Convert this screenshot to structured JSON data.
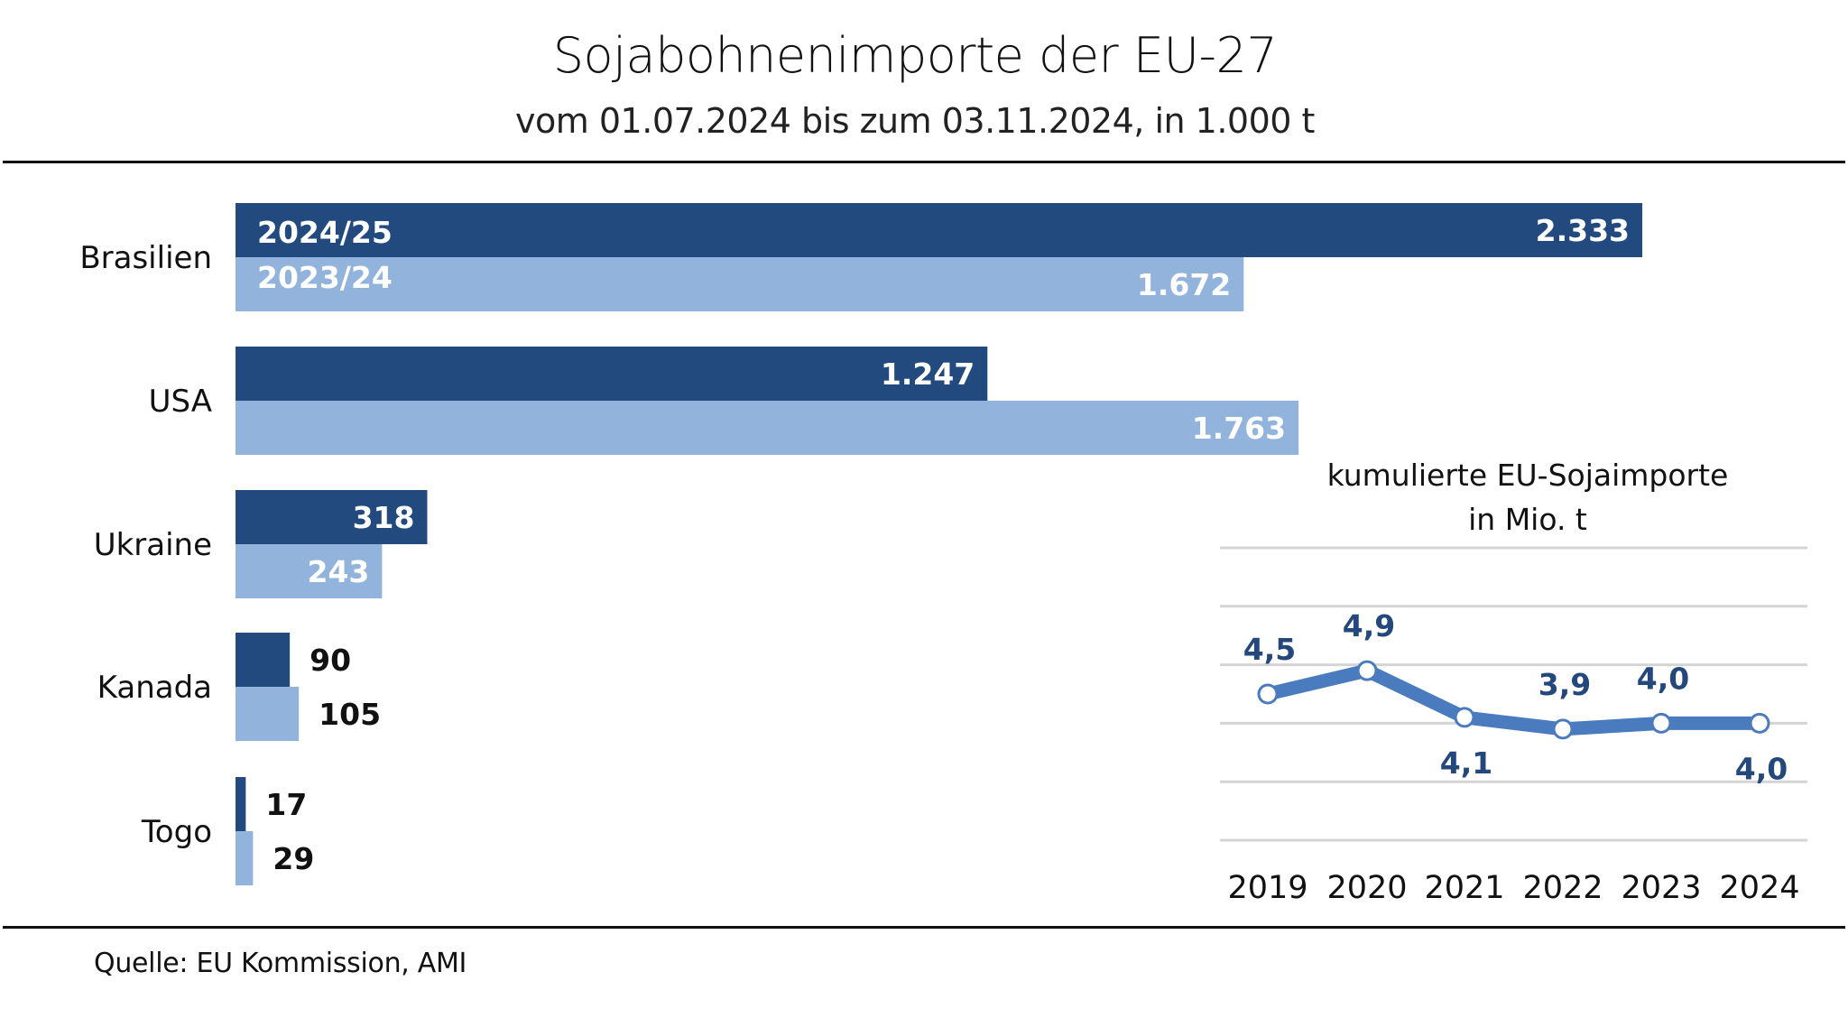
{
  "header": {
    "title": "Sojabohnenimporte der EU-27",
    "subtitle": "vom 01.07.2024 bis zum 03.11.2024, in 1.000 t"
  },
  "footer": {
    "source": "Quelle:  EU Kommission, AMI"
  },
  "colors": {
    "current_season": "#224a7e",
    "previous_season": "#91b3dc",
    "line": "#4a7bbf",
    "label_dark": "#24477c"
  },
  "chart_data": [
    {
      "type": "bar",
      "orientation": "horizontal",
      "title": "Sojabohnenimporte der EU-27",
      "subtitle": "vom 01.07.2024 bis zum 03.11.2024, in 1.000 t",
      "categories": [
        "Brasilien",
        "USA",
        "Ukraine",
        "Kanada",
        "Togo"
      ],
      "series": [
        {
          "name": "2024/25",
          "values": [
            2333,
            1247,
            318,
            90,
            17
          ],
          "labels": [
            "2.333",
            "1.247",
            "318",
            "90",
            "17"
          ]
        },
        {
          "name": "2023/24",
          "values": [
            1672,
            1763,
            243,
            105,
            29
          ],
          "labels": [
            "1.672",
            "1.763",
            "243",
            "105",
            "29"
          ]
        }
      ],
      "xlabel": "",
      "ylabel": "",
      "xlim": [
        0,
        2333
      ],
      "grid": false,
      "legend": "inside-first-bar"
    },
    {
      "type": "line",
      "title": "kumulierte EU-Sojaimporte",
      "subtitle": "in Mio. t",
      "x": [
        "2019",
        "2020",
        "2021",
        "2022",
        "2023",
        "2024"
      ],
      "series": [
        {
          "name": "kumulierte EU-Sojaimporte",
          "values": [
            4.5,
            4.9,
            4.1,
            3.9,
            4.0,
            4.0
          ],
          "labels": [
            "4,5",
            "4,9",
            "4,1",
            "3,9",
            "4,0",
            "4,0"
          ]
        }
      ],
      "label_positions": [
        "above",
        "above",
        "below",
        "above",
        "above",
        "below"
      ],
      "ylim": [
        2,
        7
      ],
      "gridlines": [
        2,
        3,
        4,
        5,
        6,
        7
      ],
      "grid": true,
      "legend": "none"
    }
  ]
}
